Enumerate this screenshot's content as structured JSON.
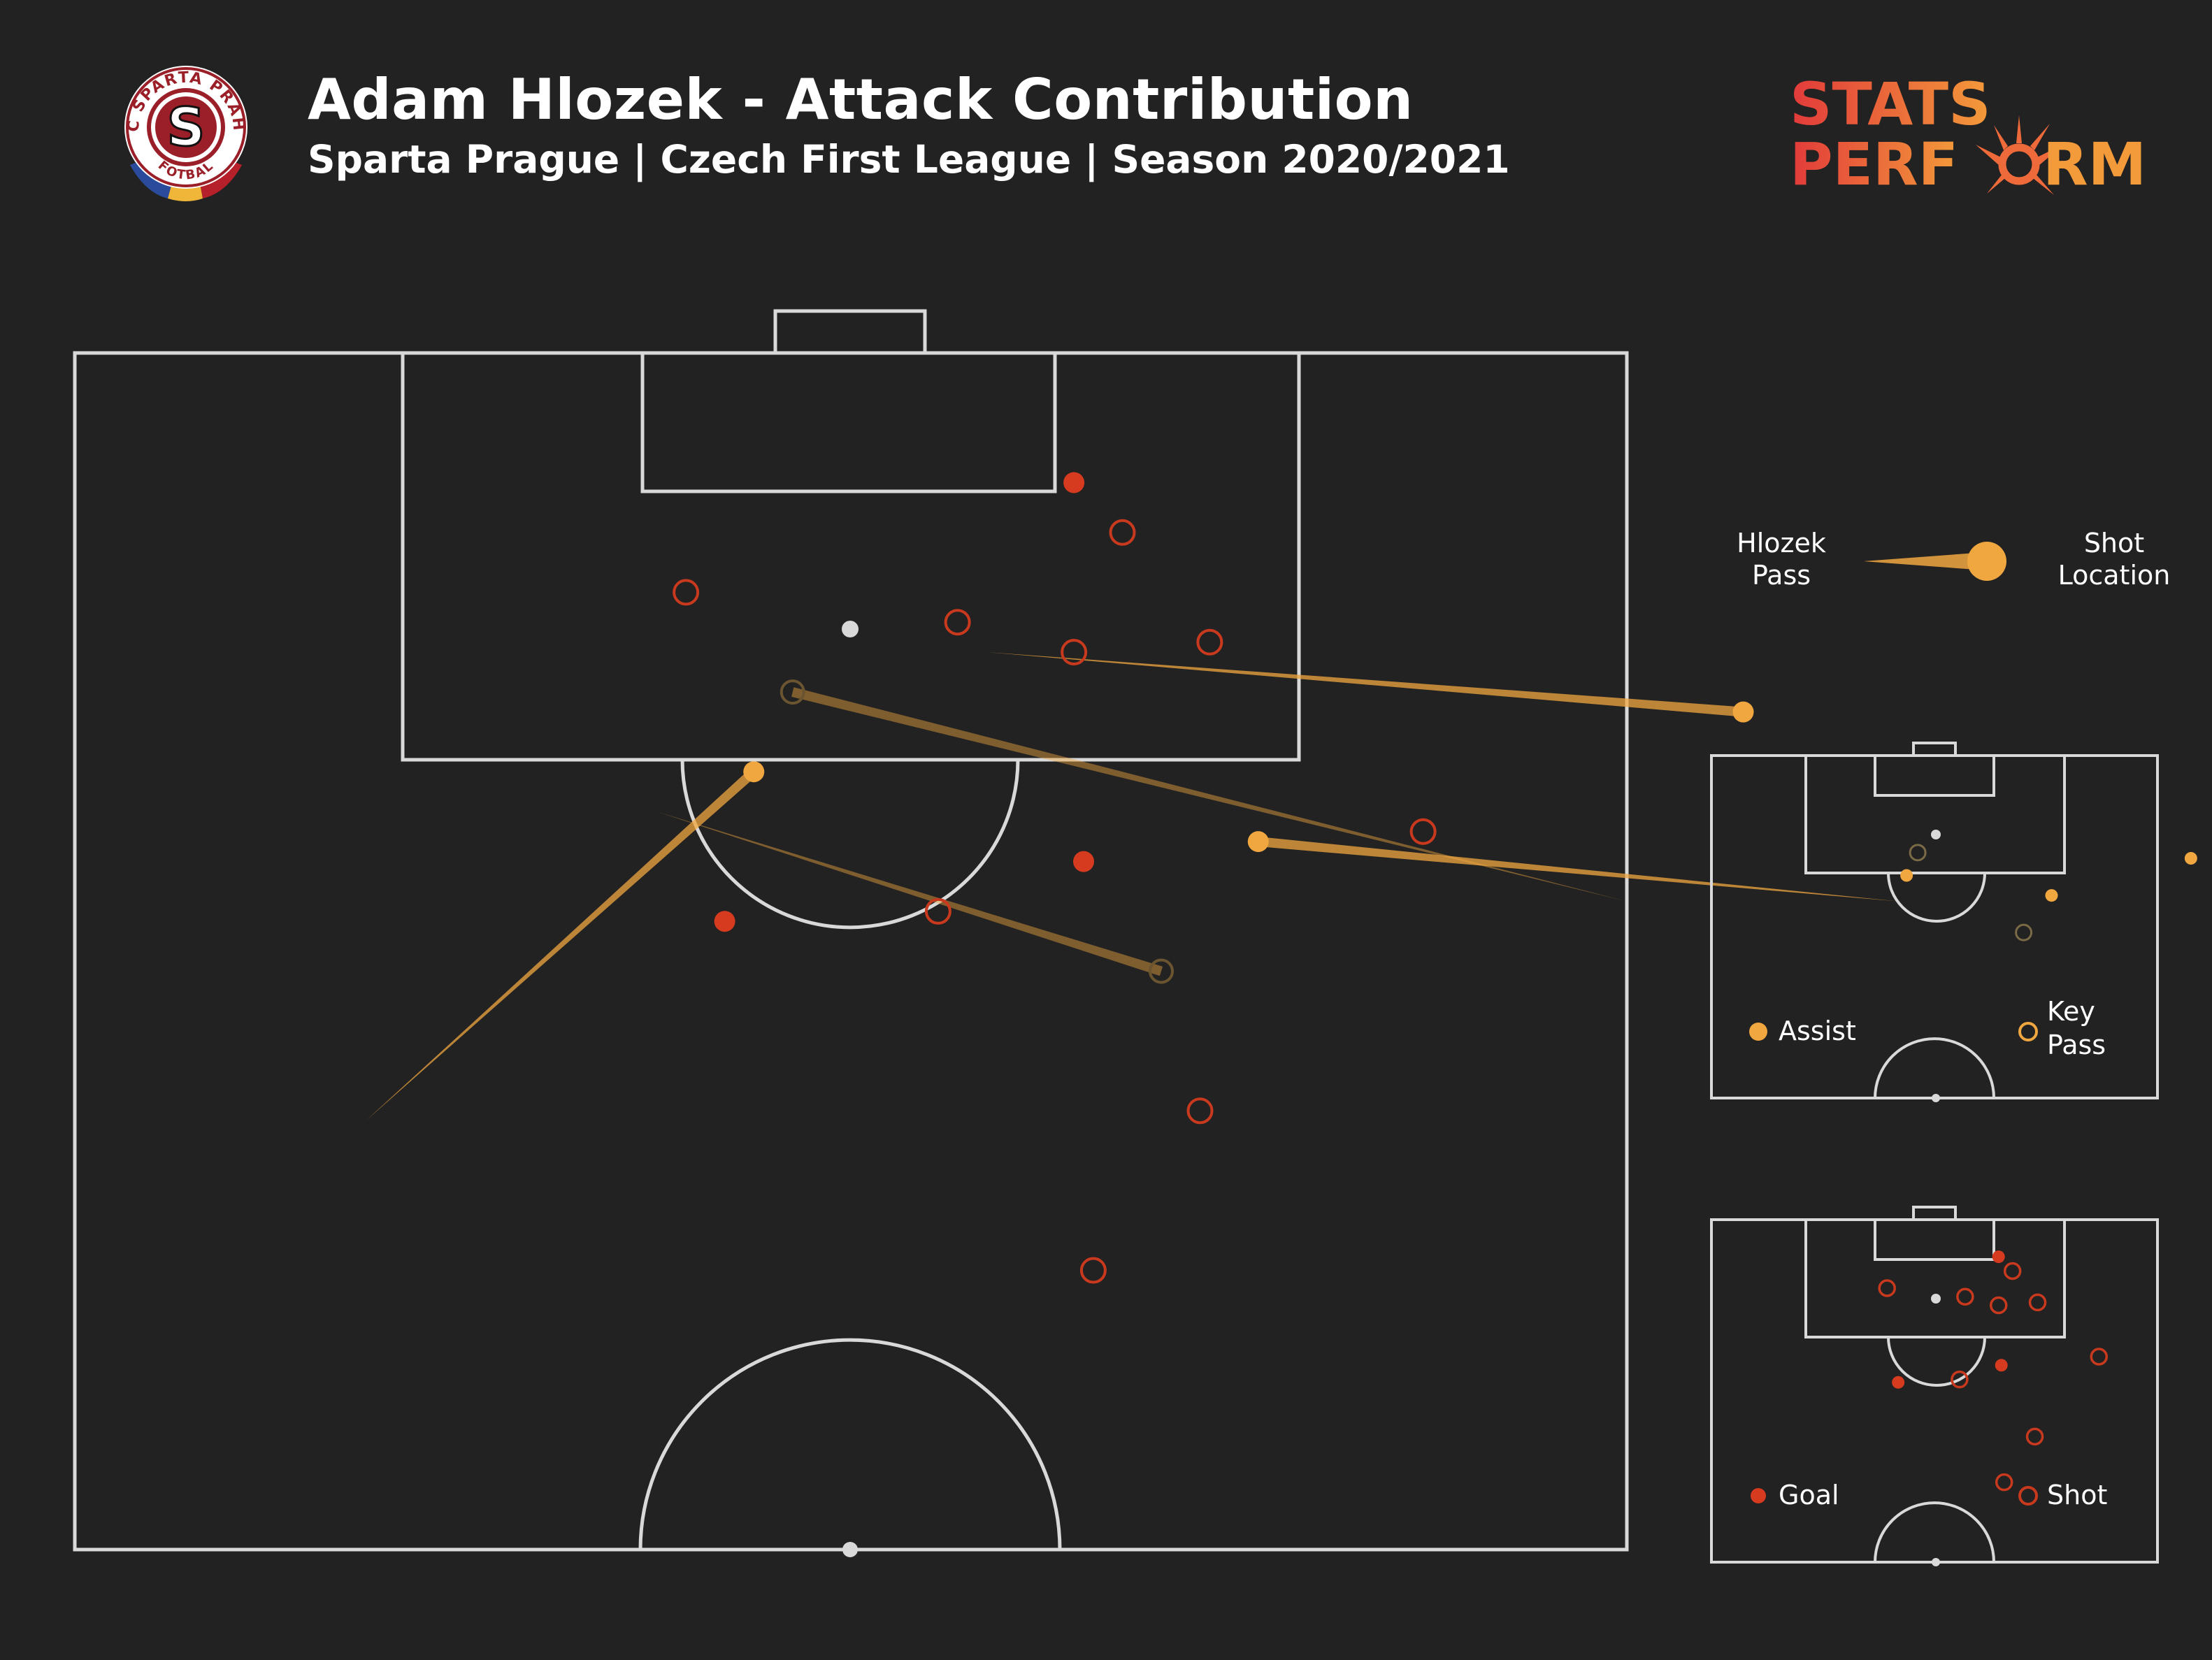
{
  "header": {
    "title": "Adam Hlozek - Attack Contribution",
    "subtitle": "Sparta Prague | Czech First League | Season 2020/2021"
  },
  "club_logo": {
    "text_top": "AC SPARTA PRAHA",
    "text_bottom": "FOTBAL",
    "letter": "S"
  },
  "brand": {
    "line1": "STATS",
    "line2": "PERF",
    "line2_end": "RM"
  },
  "legend": {
    "pass_line1": "Hlozek",
    "pass_line2": "Pass",
    "shot_line1": "Shot",
    "shot_line2": "Location",
    "assist": "Assist",
    "key_pass_line1": "Key",
    "key_pass_line2": "Pass",
    "goal": "Goal",
    "shot": "Shot"
  },
  "colors": {
    "background": "#222222",
    "pitch_line": "#d9d9d9",
    "pass": "#f0a740",
    "goal": "#d63a1f",
    "shot": "#c8391e",
    "penalty_spot": "#d9d9d9"
  },
  "chart_data": {
    "type": "scatter",
    "pitch": {
      "length": 120,
      "width": 80,
      "view": "attacking-half"
    },
    "passes": [
      {
        "kind": "assist",
        "start": [
          38.5,
          15.0
        ],
        "end": [
          21.0,
          35.0
        ]
      },
      {
        "kind": "assist",
        "start": [
          27.5,
          94.0
        ],
        "end": [
          24.5,
          61.0
        ]
      },
      {
        "kind": "assist",
        "start": [
          15.0,
          47.0
        ],
        "end": [
          18.0,
          86.0
        ]
      },
      {
        "kind": "key_pass",
        "start": [
          27.5,
          80.0
        ],
        "end": [
          17.0,
          37.0
        ]
      },
      {
        "kind": "key_pass",
        "start": [
          23.0,
          30.0
        ],
        "end": [
          31.0,
          56.0
        ]
      }
    ],
    "shots": [
      {
        "outcome": "goal",
        "x": 6.5,
        "y": 51.5
      },
      {
        "outcome": "goal",
        "x": 25.5,
        "y": 52.0
      },
      {
        "outcome": "goal",
        "x": 28.5,
        "y": 33.5
      },
      {
        "outcome": "shot",
        "x": 9.0,
        "y": 54.0
      },
      {
        "outcome": "shot",
        "x": 12.0,
        "y": 31.5
      },
      {
        "outcome": "shot",
        "x": 13.5,
        "y": 45.5
      },
      {
        "outcome": "shot",
        "x": 15.0,
        "y": 51.5
      },
      {
        "outcome": "shot",
        "x": 14.5,
        "y": 58.5
      },
      {
        "outcome": "shot",
        "x": 24.0,
        "y": 69.5
      },
      {
        "outcome": "shot",
        "x": 28.0,
        "y": 44.5
      },
      {
        "outcome": "shot",
        "x": 38.0,
        "y": 58.0
      },
      {
        "outcome": "shot",
        "x": 46.0,
        "y": 52.5
      }
    ]
  }
}
